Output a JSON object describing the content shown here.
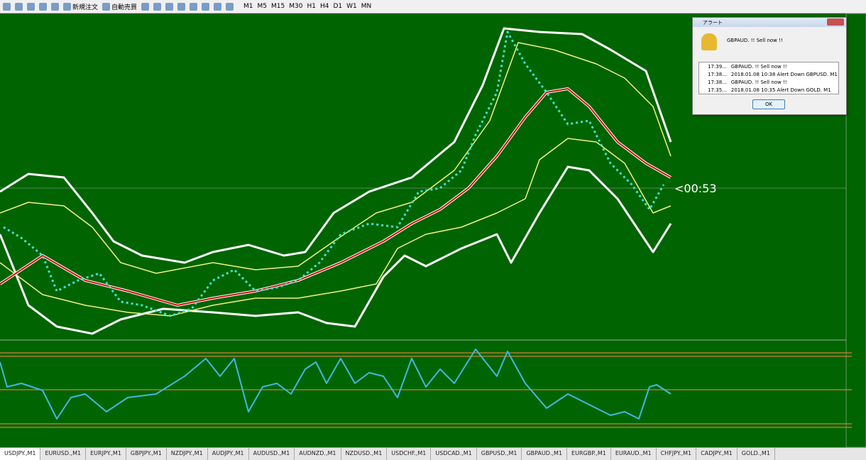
{
  "toolbar": {
    "order_button": "新規注文",
    "auto_button": "自動売買",
    "timeframes": [
      "M1",
      "M5",
      "M15",
      "M30",
      "H1",
      "H4",
      "D1",
      "W1",
      "MN"
    ]
  },
  "chart": {
    "timer": "<00:53"
  },
  "alert": {
    "title": "アラート",
    "message": "GBPAUD. !! Sell now !!",
    "rows": [
      {
        "time": "17:39...",
        "text": "GBPAUD. !! Sell now !!"
      },
      {
        "time": "17:38...",
        "text": "2018.01.08 10:38 Alert Down GBPUSD. M1"
      },
      {
        "time": "17:38...",
        "text": "GBPAUD. !! Sell now !!"
      },
      {
        "time": "17:35...",
        "text": "2018.01.08 10:35 Alert Down GOLD. M1"
      }
    ],
    "ok": "OK"
  },
  "tabs": [
    "USDJPY.,M1",
    "EURUSD.,M1",
    "EURJPY.,M1",
    "GBPJPY.,M1",
    "NZDJPY.,M1",
    "AUDJPY.,M1",
    "AUDUSD.,M1",
    "AUDNZD.,M1",
    "NZDUSD.,M1",
    "USDCHF.,M1",
    "USDCAD.,M1",
    "GBPUSD.,M1",
    "GBPAUD.,M1",
    "EURGBP.,M1",
    "EURAUD.,M1",
    "CHFJPY.,M1",
    "CADJPY.,M1",
    "GOLD.,M1"
  ]
}
